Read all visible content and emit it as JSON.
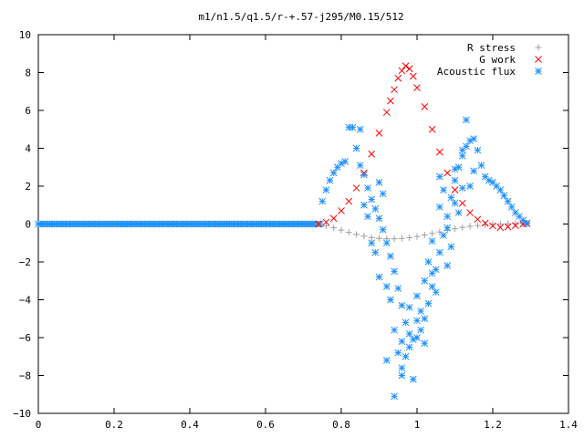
{
  "chart_data": {
    "type": "scatter",
    "title": "m1/n1.5/q1.5/r-+.57-j295/M0.15/512",
    "xlabel": "",
    "ylabel": "",
    "xlim": [
      0,
      1.4
    ],
    "ylim": [
      -10,
      10
    ],
    "x_ticks": [
      "0",
      "0.2",
      "0.4",
      "0.6",
      "0.8",
      "1",
      "1.2",
      "1.4"
    ],
    "y_ticks": [
      "10",
      "8",
      "6",
      "4",
      "2",
      "0",
      "−2",
      "−4",
      "−6",
      "−8",
      "−10"
    ],
    "legend_position": "top-right",
    "grid": false,
    "series": [
      {
        "name": "R stress",
        "marker": "plus",
        "color": "#a0a0a0",
        "points": [
          [
            0.74,
            0.0
          ],
          [
            0.76,
            -0.1
          ],
          [
            0.78,
            -0.2
          ],
          [
            0.8,
            -0.32
          ],
          [
            0.82,
            -0.44
          ],
          [
            0.84,
            -0.55
          ],
          [
            0.86,
            -0.64
          ],
          [
            0.88,
            -0.72
          ],
          [
            0.9,
            -0.76
          ],
          [
            0.92,
            -0.78
          ],
          [
            0.94,
            -0.78
          ],
          [
            0.96,
            -0.76
          ],
          [
            0.98,
            -0.72
          ],
          [
            1.0,
            -0.66
          ],
          [
            1.02,
            -0.58
          ],
          [
            1.04,
            -0.5
          ],
          [
            1.06,
            -0.42
          ],
          [
            1.08,
            -0.33
          ],
          [
            1.1,
            -0.25
          ],
          [
            1.12,
            -0.18
          ],
          [
            1.14,
            -0.12
          ],
          [
            1.16,
            -0.08
          ],
          [
            1.18,
            -0.04
          ],
          [
            1.2,
            -0.02
          ],
          [
            1.22,
            0.0
          ],
          [
            1.24,
            0.01
          ],
          [
            1.26,
            0.02
          ],
          [
            1.28,
            0.02
          ],
          [
            1.29,
            0.0
          ]
        ]
      },
      {
        "name": "G work",
        "marker": "cross",
        "color": "#ff0000",
        "points": [
          [
            0.74,
            0.0
          ],
          [
            0.76,
            0.1
          ],
          [
            0.78,
            0.3
          ],
          [
            0.8,
            0.7
          ],
          [
            0.82,
            1.2
          ],
          [
            0.84,
            1.9
          ],
          [
            0.86,
            2.7
          ],
          [
            0.88,
            3.7
          ],
          [
            0.9,
            4.8
          ],
          [
            0.92,
            5.9
          ],
          [
            0.93,
            6.5
          ],
          [
            0.94,
            7.1
          ],
          [
            0.95,
            7.7
          ],
          [
            0.96,
            8.1
          ],
          [
            0.97,
            8.35
          ],
          [
            0.98,
            8.2
          ],
          [
            0.99,
            7.8
          ],
          [
            1.0,
            7.2
          ],
          [
            1.02,
            6.2
          ],
          [
            1.04,
            5.0
          ],
          [
            1.06,
            3.8
          ],
          [
            1.08,
            2.7
          ],
          [
            1.1,
            1.8
          ],
          [
            1.12,
            1.1
          ],
          [
            1.14,
            0.6
          ],
          [
            1.16,
            0.25
          ],
          [
            1.18,
            0.05
          ],
          [
            1.2,
            -0.1
          ],
          [
            1.22,
            -0.18
          ],
          [
            1.24,
            -0.15
          ],
          [
            1.26,
            -0.08
          ],
          [
            1.28,
            0.0
          ],
          [
            1.29,
            0.02
          ]
        ]
      },
      {
        "name": "Acoustic flux",
        "marker": "star",
        "color": "#1e90ff",
        "points": [
          [
            0.75,
            1.2
          ],
          [
            0.76,
            1.8
          ],
          [
            0.77,
            2.3
          ],
          [
            0.78,
            2.7
          ],
          [
            0.79,
            3.0
          ],
          [
            0.8,
            3.2
          ],
          [
            0.81,
            3.3
          ],
          [
            0.82,
            5.1
          ],
          [
            0.83,
            5.1
          ],
          [
            0.84,
            4.0
          ],
          [
            0.85,
            3.1
          ],
          [
            0.86,
            2.6
          ],
          [
            0.87,
            1.9
          ],
          [
            0.88,
            1.3
          ],
          [
            0.89,
            0.8
          ],
          [
            0.9,
            0.3
          ],
          [
            0.91,
            -0.3
          ],
          [
            0.92,
            -1.0
          ],
          [
            0.93,
            -1.7
          ],
          [
            0.94,
            -2.5
          ],
          [
            0.95,
            -3.4
          ],
          [
            0.96,
            -4.3
          ],
          [
            0.97,
            -5.2
          ],
          [
            0.98,
            -5.8
          ],
          [
            0.99,
            -6.1
          ],
          [
            1.0,
            -6.0
          ],
          [
            1.01,
            -5.6
          ],
          [
            1.02,
            -5.0
          ],
          [
            1.03,
            -4.2
          ],
          [
            1.04,
            -3.3
          ],
          [
            1.05,
            -2.4
          ],
          [
            1.06,
            -1.5
          ],
          [
            1.07,
            -0.6
          ],
          [
            1.08,
            0.4
          ],
          [
            1.09,
            1.4
          ],
          [
            1.1,
            2.3
          ],
          [
            1.11,
            3.0
          ],
          [
            1.12,
            3.6
          ],
          [
            1.13,
            4.1
          ],
          [
            1.14,
            4.4
          ],
          [
            1.15,
            4.5
          ],
          [
            1.16,
            3.9
          ],
          [
            1.17,
            3.1
          ],
          [
            1.18,
            2.5
          ],
          [
            1.19,
            2.3
          ],
          [
            1.2,
            2.2
          ],
          [
            1.21,
            2.0
          ],
          [
            1.22,
            1.8
          ],
          [
            1.23,
            1.5
          ],
          [
            1.24,
            1.2
          ],
          [
            1.25,
            0.9
          ],
          [
            1.26,
            0.6
          ],
          [
            1.27,
            0.4
          ],
          [
            1.28,
            0.2
          ],
          [
            1.29,
            0.05
          ],
          [
            0.87,
            0.4
          ],
          [
            0.89,
            -1.5
          ],
          [
            0.91,
            1.6
          ],
          [
            0.93,
            -4.0
          ],
          [
            0.95,
            -6.8
          ],
          [
            0.96,
            -8.0
          ],
          [
            0.97,
            -7.0
          ],
          [
            0.99,
            -8.2
          ],
          [
            1.01,
            -4.6
          ],
          [
            1.03,
            -2.0
          ],
          [
            1.05,
            -3.6
          ],
          [
            1.07,
            1.8
          ],
          [
            1.09,
            -1.2
          ],
          [
            1.11,
            0.6
          ],
          [
            1.13,
            5.5
          ],
          [
            1.15,
            2.8
          ],
          [
            0.85,
            5.0
          ],
          [
            0.88,
            -1.0
          ],
          [
            0.9,
            -2.8
          ],
          [
            0.92,
            -7.2
          ],
          [
            0.94,
            -9.1
          ],
          [
            0.96,
            -6.2
          ],
          [
            0.98,
            -4.4
          ],
          [
            1.0,
            -5.1
          ],
          [
            1.02,
            -3.0
          ],
          [
            1.04,
            -0.9
          ],
          [
            1.06,
            2.5
          ],
          [
            1.08,
            -0.2
          ],
          [
            1.1,
            1.1
          ],
          [
            1.12,
            3.9
          ],
          [
            1.14,
            2.0
          ],
          [
            0.86,
            1.0
          ],
          [
            0.9,
            2.2
          ],
          [
            0.92,
            -3.3
          ],
          [
            0.94,
            -5.6
          ],
          [
            0.96,
            -7.6
          ],
          [
            0.98,
            -6.5
          ],
          [
            1.0,
            -3.8
          ],
          [
            1.02,
            -6.3
          ],
          [
            1.04,
            -2.6
          ],
          [
            1.06,
            0.9
          ],
          [
            1.08,
            -2.2
          ],
          [
            1.1,
            2.9
          ],
          [
            1.12,
            1.9
          ]
        ]
      }
    ]
  }
}
